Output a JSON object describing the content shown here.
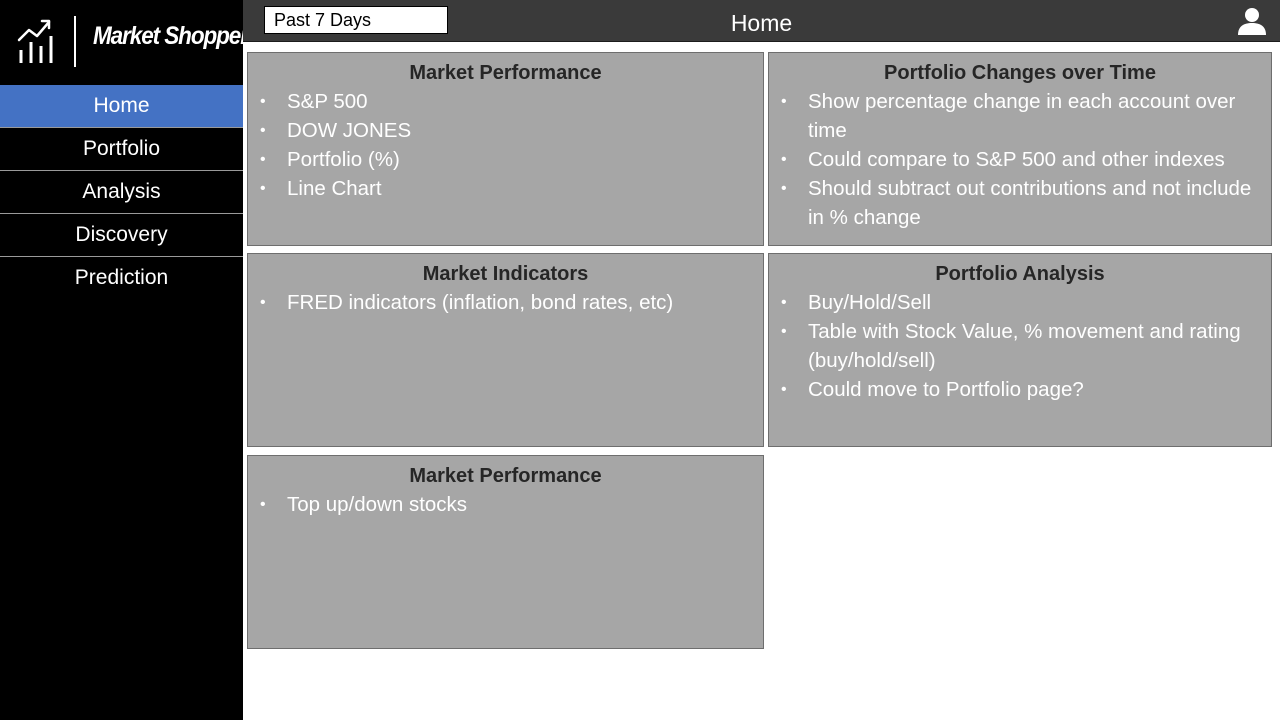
{
  "app": {
    "brand": "Market Shopper"
  },
  "sidebar": {
    "items": [
      {
        "label": "Home",
        "active": true
      },
      {
        "label": "Portfolio",
        "active": false
      },
      {
        "label": "Analysis",
        "active": false
      },
      {
        "label": "Discovery",
        "active": false
      },
      {
        "label": "Prediction",
        "active": false
      }
    ]
  },
  "header": {
    "date_range": "Past 7 Days",
    "title": "Home",
    "user_icon": "user-icon"
  },
  "cards": [
    {
      "title": "Market Performance",
      "items": [
        "S&P 500",
        "DOW JONES",
        "Portfolio (%)",
        "Line Chart"
      ]
    },
    {
      "title": "Portfolio Changes over Time",
      "items": [
        "Show percentage change in each account over time",
        "Could compare to S&P 500 and other indexes",
        "Should subtract out contributions and not include in % change"
      ]
    },
    {
      "title": "Market Indicators",
      "items": [
        "FRED indicators (inflation, bond rates, etc)"
      ]
    },
    {
      "title": "Portfolio Analysis",
      "items": [
        "Buy/Hold/Sell",
        "Table with Stock Value, % movement and rating (buy/hold/sell)",
        "Could move to Portfolio page?"
      ]
    },
    {
      "title": "Market Performance",
      "items": [
        "Top up/down stocks"
      ]
    }
  ],
  "colors": {
    "sidebar_bg": "#000000",
    "active_nav": "#4472c4",
    "topbar_bg": "#3a3a3a",
    "card_bg": "#a6a6a6",
    "card_title": "#262626"
  }
}
